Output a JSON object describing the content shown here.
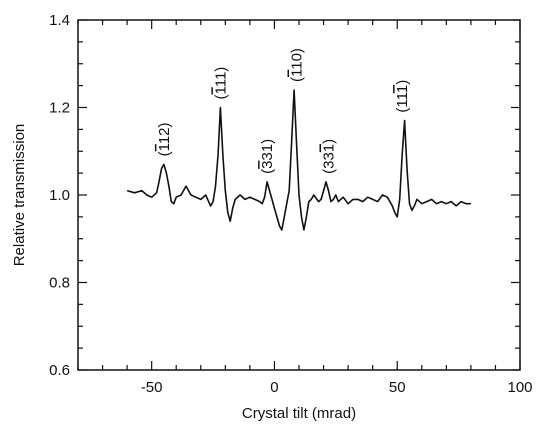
{
  "chart_data": {
    "type": "line",
    "title": "",
    "xlabel": "Crystal tilt (mrad)",
    "ylabel": "Relative transmission",
    "xlim": [
      -80,
      100
    ],
    "ylim": [
      0.6,
      1.4
    ],
    "xticks": [
      -50,
      0,
      50,
      100
    ],
    "yticks": [
      0.6,
      0.8,
      1.0,
      1.2,
      1.4
    ],
    "x_tick_labels": [
      "-50",
      "0",
      "50",
      "100"
    ],
    "y_tick_labels": [
      "0.6",
      "0.8",
      "1.0",
      "1.2",
      "1.4"
    ],
    "grid": false,
    "series": [
      {
        "x": [
          -60,
          -57,
          -54,
          -52,
          -50,
          -48,
          -47,
          -46,
          -45,
          -44,
          -43,
          -42,
          -41,
          -40,
          -38,
          -36,
          -34,
          -32,
          -30,
          -28,
          -26,
          -25,
          -24,
          -23,
          -22,
          -21,
          -20,
          -19,
          -18,
          -17,
          -16,
          -14,
          -12,
          -10,
          -8,
          -6,
          -5,
          -4,
          -3,
          -2,
          -1,
          0,
          1,
          2,
          3,
          4,
          5,
          6,
          7,
          8,
          9,
          10,
          11,
          12,
          13,
          14,
          15,
          16,
          18,
          19,
          20,
          21,
          22,
          23,
          24,
          25,
          26,
          28,
          30,
          32,
          34,
          36,
          38,
          40,
          42,
          44,
          46,
          48,
          49,
          50,
          51,
          52,
          53,
          54,
          55,
          56,
          57,
          58,
          60,
          62,
          64,
          66,
          68,
          70,
          72,
          74,
          76,
          78,
          80
        ],
        "y": [
          1.01,
          1.005,
          1.01,
          1.0,
          0.995,
          1.005,
          1.03,
          1.06,
          1.07,
          1.05,
          1.02,
          0.985,
          0.98,
          0.995,
          1.0,
          1.02,
          1.0,
          0.995,
          0.99,
          1.0,
          0.975,
          0.985,
          1.02,
          1.09,
          1.2,
          1.09,
          1.01,
          0.96,
          0.94,
          0.97,
          0.99,
          1.0,
          0.99,
          0.995,
          0.99,
          0.985,
          0.98,
          0.995,
          1.03,
          1.01,
          0.99,
          0.97,
          0.95,
          0.93,
          0.92,
          0.95,
          0.98,
          1.01,
          1.12,
          1.24,
          1.12,
          1.0,
          0.95,
          0.92,
          0.95,
          0.985,
          0.99,
          1.0,
          0.985,
          0.99,
          1.01,
          1.03,
          1.01,
          0.985,
          0.99,
          1.0,
          0.985,
          0.995,
          0.98,
          0.99,
          0.99,
          0.985,
          0.995,
          0.99,
          0.985,
          1.0,
          0.995,
          0.975,
          0.96,
          0.95,
          0.99,
          1.09,
          1.17,
          1.06,
          0.98,
          0.965,
          0.975,
          0.99,
          0.98,
          0.985,
          0.99,
          0.98,
          0.985,
          0.98,
          0.985,
          0.975,
          0.985,
          0.98,
          0.98
        ]
      }
    ],
    "annotations": [
      {
        "text": "(112)",
        "overline": [
          1
        ],
        "x": -45,
        "y": 1.07
      },
      {
        "text": "(111)",
        "overline": [
          1
        ],
        "x": -22,
        "y": 1.2
      },
      {
        "text": "(331)",
        "overline": [
          1
        ],
        "x": -3,
        "y": 1.03
      },
      {
        "text": "(110)",
        "overline": [
          1
        ],
        "x": 9,
        "y": 1.24
      },
      {
        "text": "(331)",
        "overline": [
          3
        ],
        "x": 22,
        "y": 1.03
      },
      {
        "text": "(111)",
        "overline": [
          3
        ],
        "x": 52,
        "y": 1.17
      }
    ]
  }
}
